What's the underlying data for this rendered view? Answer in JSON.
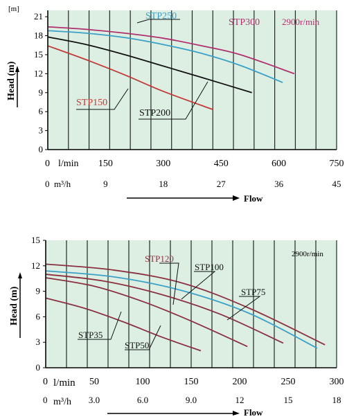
{
  "chart_data": [
    {
      "type": "line",
      "title": "",
      "speed_label": "2900r/min",
      "y_axis": {
        "label": "Head (m)",
        "unit": "[m]",
        "ticks": [
          "0",
          "3",
          "6",
          "9",
          "12",
          "15",
          "18",
          "21"
        ],
        "ylim": [
          0,
          22
        ]
      },
      "x_axis_lpm": {
        "unit": "l/min",
        "ticks": [
          "0",
          "150",
          "300",
          "450",
          "600",
          "750"
        ],
        "xlim": [
          0,
          750
        ]
      },
      "x_axis_m3h": {
        "unit": "m³/h",
        "ticks": [
          "0",
          "9",
          "18",
          "27",
          "36",
          "45"
        ]
      },
      "flow_label": "Flow",
      "grid": true,
      "series": [
        {
          "name": "STP150",
          "color": "#c23a3a",
          "x": [
            0,
            100,
            200,
            300,
            430
          ],
          "y": [
            16.4,
            14.2,
            11.8,
            9.2,
            6.3
          ]
        },
        {
          "name": "STP200",
          "color": "#111111",
          "x": [
            0,
            100,
            200,
            300,
            400,
            530
          ],
          "y": [
            17.8,
            16.6,
            15.0,
            13.2,
            11.4,
            9.0
          ]
        },
        {
          "name": "STP250",
          "color": "#3aa0c8",
          "x": [
            0,
            100,
            200,
            300,
            400,
            500,
            610
          ],
          "y": [
            18.8,
            18.4,
            17.7,
            16.6,
            15.2,
            13.3,
            10.6
          ]
        },
        {
          "name": "STP300",
          "color": "#b0306e",
          "x": [
            0,
            100,
            200,
            300,
            400,
            500,
            640
          ],
          "y": [
            19.4,
            19.0,
            18.4,
            17.6,
            16.4,
            15.0,
            12.0
          ]
        }
      ]
    },
    {
      "type": "line",
      "title": "",
      "speed_label": "2900r/min",
      "y_axis": {
        "label": "Head (m)",
        "ticks": [
          "0",
          "3",
          "6",
          "9",
          "12",
          "15"
        ],
        "ylim": [
          0,
          15
        ]
      },
      "x_axis_lpm": {
        "unit": "l/min",
        "ticks": [
          "0",
          "50",
          "100",
          "150",
          "200",
          "250",
          "300"
        ],
        "xlim": [
          0,
          300
        ]
      },
      "x_axis_m3h": {
        "unit": "m³/h",
        "ticks": [
          "0",
          "3.0",
          "6.0",
          "9.0",
          "12",
          "15",
          "18"
        ]
      },
      "flow_label": "Flow",
      "grid": true,
      "series": [
        {
          "name": "STP35",
          "color": "#8a3040",
          "x": [
            0,
            40,
            80,
            120,
            160
          ],
          "y": [
            8.2,
            7.0,
            5.4,
            3.6,
            2.0
          ]
        },
        {
          "name": "STP50",
          "color": "#8a3040",
          "x": [
            0,
            50,
            100,
            150,
            208
          ],
          "y": [
            10.6,
            9.6,
            7.8,
            5.5,
            2.5
          ]
        },
        {
          "name": "STP75",
          "color": "#8a3040",
          "x": [
            0,
            60,
            120,
            180,
            245
          ],
          "y": [
            11.0,
            10.2,
            8.6,
            6.3,
            2.9
          ]
        },
        {
          "name": "STP100",
          "color": "#3aa0c8",
          "x": [
            0,
            70,
            140,
            210,
            280
          ],
          "y": [
            11.4,
            10.7,
            9.1,
            6.4,
            2.3
          ]
        },
        {
          "name": "STP120",
          "color": "#8a3040",
          "x": [
            0,
            70,
            140,
            210,
            288
          ],
          "y": [
            12.2,
            11.5,
            10.0,
            7.0,
            2.7
          ]
        }
      ]
    }
  ]
}
